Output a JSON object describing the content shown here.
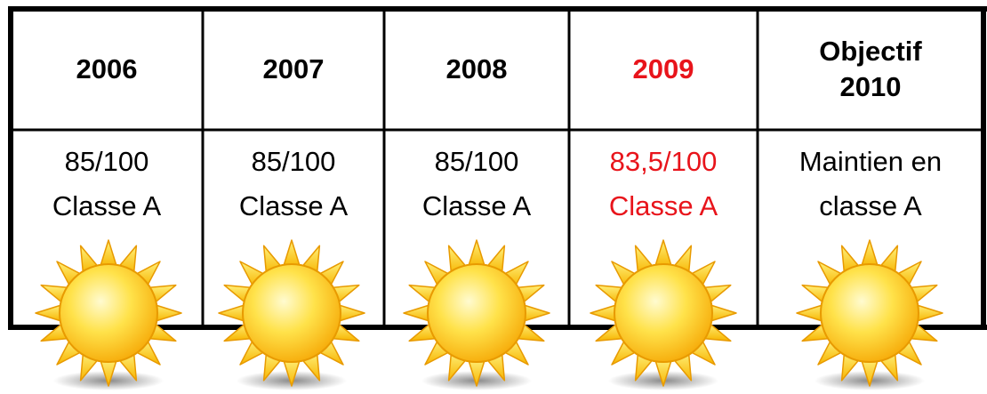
{
  "table": {
    "header": [
      [
        "2006"
      ],
      [
        "2007"
      ],
      [
        "2008"
      ],
      [
        "2009"
      ],
      [
        "Objectif",
        "2010"
      ]
    ],
    "rows": [
      [
        [
          "85/100",
          "Classe A"
        ],
        [
          "85/100",
          "Classe A"
        ],
        [
          "85/100",
          "Classe A"
        ],
        [
          "83,5/100",
          "Classe A"
        ],
        [
          "Maintien en",
          "classe A"
        ]
      ]
    ],
    "column_colors": [
      "#000000",
      "#000000",
      "#000000",
      "#e8141b",
      "#000000"
    ]
  }
}
